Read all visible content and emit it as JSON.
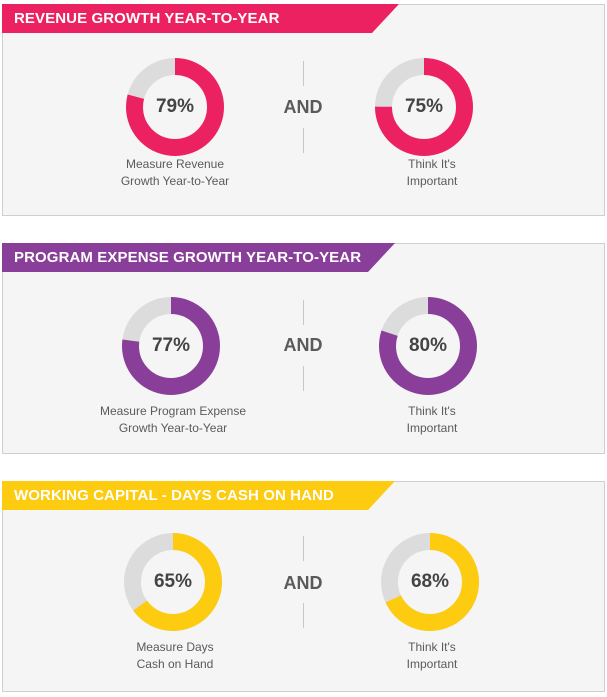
{
  "connector": "AND",
  "colors": {
    "pink": "#ec2161",
    "purple": "#893e99",
    "yellow": "#fdcb0f",
    "track": "#dcdcdc"
  },
  "sections": [
    {
      "title": "REVENUE GROWTH YEAR-TO-YEAR",
      "color": "#ec2161",
      "left": {
        "value": 79,
        "label": "79%",
        "caption_line1": "Measure  Revenue",
        "caption_line2": "Growth Year-to-Year"
      },
      "right": {
        "value": 75,
        "label": "75%",
        "caption_line1": "Think It's",
        "caption_line2": "Important"
      }
    },
    {
      "title": "PROGRAM EXPENSE GROWTH YEAR-TO-YEAR",
      "color": "#893e99",
      "left": {
        "value": 77,
        "label": "77%",
        "caption_line1": "Measure Program Expense",
        "caption_line2": "Growth Year-to-Year"
      },
      "right": {
        "value": 80,
        "label": "80%",
        "caption_line1": "Think It's",
        "caption_line2": "Important"
      }
    },
    {
      "title": "WORKING CAPITAL - DAYS CASH ON HAND",
      "color": "#fdcb0f",
      "left": {
        "value": 65,
        "label": "65%",
        "caption_line1": "Measure Days",
        "caption_line2": "Cash on Hand"
      },
      "right": {
        "value": 68,
        "label": "68%",
        "caption_line1": "Think It's",
        "caption_line2": "Important"
      }
    }
  ],
  "chart_data": [
    {
      "type": "pie",
      "title": "REVENUE GROWTH YEAR-TO-YEAR",
      "categories": [
        "Measure Revenue Growth Year-to-Year",
        "Think It's Important"
      ],
      "values": [
        79,
        75
      ],
      "unit": "%"
    },
    {
      "type": "pie",
      "title": "PROGRAM EXPENSE GROWTH YEAR-TO-YEAR",
      "categories": [
        "Measure Program Expense Growth Year-to-Year",
        "Think It's Important"
      ],
      "values": [
        77,
        80
      ],
      "unit": "%"
    },
    {
      "type": "pie",
      "title": "WORKING CAPITAL - DAYS CASH ON HAND",
      "categories": [
        "Measure Days Cash on Hand",
        "Think It's Important"
      ],
      "values": [
        65,
        68
      ],
      "unit": "%"
    }
  ]
}
